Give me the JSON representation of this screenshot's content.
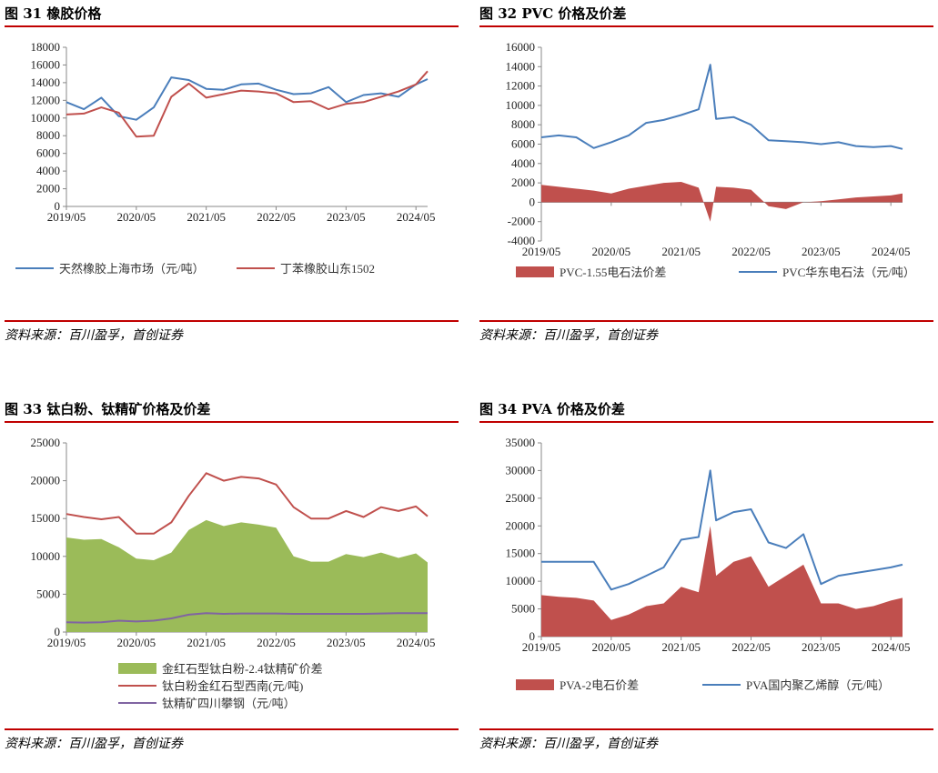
{
  "panels": [
    {
      "title": "图 31 橡胶价格",
      "source": "资料来源：百川盈孚，首创证券",
      "chart_data": {
        "type": "line",
        "ylim": [
          0,
          18000
        ],
        "yticks": [
          "0",
          "2000",
          "4000",
          "6000",
          "8000",
          "10000",
          "12000",
          "14000",
          "16000",
          "18000"
        ],
        "xticks": [
          "2019/05",
          "2020/05",
          "2021/05",
          "2022/05",
          "2023/05",
          "2024/05"
        ],
        "x": [
          "2019/05",
          "2019/08",
          "2019/11",
          "2020/02",
          "2020/05",
          "2020/08",
          "2020/11",
          "2021/02",
          "2021/05",
          "2021/08",
          "2021/11",
          "2022/02",
          "2022/05",
          "2022/08",
          "2022/11",
          "2023/02",
          "2023/05",
          "2023/08",
          "2023/11",
          "2024/02",
          "2024/05",
          "2024/07"
        ],
        "series": [
          {
            "name": "天然橡胶上海市场（元/吨）",
            "color": "#4a7ebb",
            "values": [
              11800,
              11000,
              12300,
              10200,
              9800,
              11200,
              14600,
              14300,
              13300,
              13200,
              13800,
              13900,
              13200,
              12700,
              12800,
              13500,
              11800,
              12600,
              12800,
              12400,
              13800,
              14400
            ]
          },
          {
            "name": "丁苯橡胶山东1502",
            "color": "#c0504d",
            "values": [
              10400,
              10500,
              11200,
              10600,
              7900,
              8000,
              12400,
              13900,
              12300,
              12700,
              13100,
              13000,
              12800,
              11800,
              11900,
              11000,
              11600,
              11800,
              12400,
              13000,
              13800,
              15300
            ]
          }
        ]
      }
    },
    {
      "title": "图 32 PVC 价格及价差",
      "source": "资料来源：百川盈孚，首创证券",
      "chart_data": {
        "type": "area",
        "ylim": [
          -4000,
          16000
        ],
        "yticks": [
          "-4000",
          "-2000",
          "0",
          "2000",
          "4000",
          "6000",
          "8000",
          "10000",
          "12000",
          "14000",
          "16000"
        ],
        "xticks": [
          "2019/05",
          "2020/05",
          "2021/05",
          "2022/05",
          "2023/05",
          "2024/05"
        ],
        "x": [
          "2019/05",
          "2019/08",
          "2019/11",
          "2020/02",
          "2020/05",
          "2020/08",
          "2020/11",
          "2021/02",
          "2021/05",
          "2021/08",
          "2021/10",
          "2021/11",
          "2022/02",
          "2022/05",
          "2022/08",
          "2022/11",
          "2023/02",
          "2023/05",
          "2023/08",
          "2023/11",
          "2024/02",
          "2024/05",
          "2024/07"
        ],
        "series": [
          {
            "name": "PVC-1.55电石法价差",
            "color": "#c0504d",
            "kind": "area",
            "values": [
              1800,
              1600,
              1400,
              1200,
              900,
              1400,
              1700,
              2000,
              2100,
              1500,
              -2000,
              1600,
              1500,
              1300,
              -400,
              -700,
              0,
              100,
              300,
              500,
              600,
              700,
              900
            ]
          },
          {
            "name": "PVC华东电石法（元/吨）",
            "color": "#4a7ebb",
            "kind": "line",
            "values": [
              6700,
              6900,
              6700,
              5600,
              6200,
              6900,
              8200,
              8500,
              9000,
              9600,
              14200,
              8600,
              8800,
              8000,
              6400,
              6300,
              6200,
              6000,
              6200,
              5800,
              5700,
              5800,
              5500
            ]
          }
        ]
      }
    },
    {
      "title": "图 33 钛白粉、钛精矿价格及价差",
      "source": "资料来源：百川盈孚，首创证券",
      "chart_data": {
        "type": "area",
        "ylim": [
          0,
          25000
        ],
        "yticks": [
          "0",
          "5000",
          "10000",
          "15000",
          "20000",
          "25000"
        ],
        "xticks": [
          "2019/05",
          "2020/05",
          "2021/05",
          "2022/05",
          "2023/05",
          "2024/05"
        ],
        "x": [
          "2019/05",
          "2019/08",
          "2019/11",
          "2020/02",
          "2020/05",
          "2020/08",
          "2020/11",
          "2021/02",
          "2021/05",
          "2021/08",
          "2021/11",
          "2022/02",
          "2022/05",
          "2022/08",
          "2022/11",
          "2023/02",
          "2023/05",
          "2023/08",
          "2023/11",
          "2024/02",
          "2024/05",
          "2024/07"
        ],
        "series": [
          {
            "name": "金红石型钛白粉-2.4钛精矿价差",
            "color": "#9bbb59",
            "kind": "area",
            "values": [
              12500,
              12200,
              12300,
              11200,
              9700,
              9500,
              10500,
              13500,
              14800,
              14000,
              14500,
              14200,
              13800,
              10000,
              9300,
              9300,
              10300,
              9900,
              10500,
              9800,
              10400,
              9200
            ]
          },
          {
            "name": "钛白粉金红石型西南(元/吨)",
            "color": "#c0504d",
            "kind": "line",
            "values": [
              15600,
              15200,
              14900,
              15200,
              13000,
              13000,
              14500,
              18000,
              21000,
              20000,
              20500,
              20300,
              19500,
              16500,
              15000,
              15000,
              16000,
              15200,
              16500,
              16000,
              16600,
              15300
            ]
          },
          {
            "name": "钛精矿四川攀钢（元/吨）",
            "color": "#8064a2",
            "kind": "line",
            "values": [
              1300,
              1250,
              1300,
              1500,
              1400,
              1500,
              1800,
              2300,
              2500,
              2400,
              2450,
              2450,
              2450,
              2400,
              2400,
              2400,
              2400,
              2400,
              2450,
              2500,
              2500,
              2500
            ]
          }
        ]
      }
    },
    {
      "title": "图 34 PVA 价格及价差",
      "source": "资料来源：百川盈孚，首创证券",
      "chart_data": {
        "type": "area",
        "ylim": [
          0,
          35000
        ],
        "yticks": [
          "0",
          "5000",
          "10000",
          "15000",
          "20000",
          "25000",
          "30000",
          "35000"
        ],
        "xticks": [
          "2019/05",
          "2020/05",
          "2021/05",
          "2022/05",
          "2023/05",
          "2024/05"
        ],
        "x": [
          "2019/05",
          "2019/08",
          "2019/11",
          "2020/02",
          "2020/05",
          "2020/08",
          "2020/11",
          "2021/02",
          "2021/05",
          "2021/08",
          "2021/10",
          "2021/11",
          "2022/02",
          "2022/05",
          "2022/08",
          "2022/11",
          "2023/02",
          "2023/05",
          "2023/08",
          "2023/11",
          "2024/02",
          "2024/05",
          "2024/07"
        ],
        "series": [
          {
            "name": "PVA-2电石价差",
            "color": "#c0504d",
            "kind": "area",
            "values": [
              7500,
              7200,
              7000,
              6500,
              3000,
              4000,
              5500,
              6000,
              9000,
              8000,
              20000,
              11000,
              13500,
              14500,
              9000,
              11000,
              13000,
              6000,
              6000,
              5000,
              5500,
              6500,
              7000
            ]
          },
          {
            "name": "PVA国内聚乙烯醇（元/吨）",
            "color": "#4a7ebb",
            "kind": "line",
            "values": [
              13500,
              13500,
              13500,
              13500,
              8500,
              9500,
              11000,
              12500,
              17500,
              18000,
              30000,
              21000,
              22500,
              23000,
              17000,
              16000,
              18500,
              9500,
              11000,
              11500,
              12000,
              12500,
              13000
            ]
          }
        ]
      }
    }
  ]
}
